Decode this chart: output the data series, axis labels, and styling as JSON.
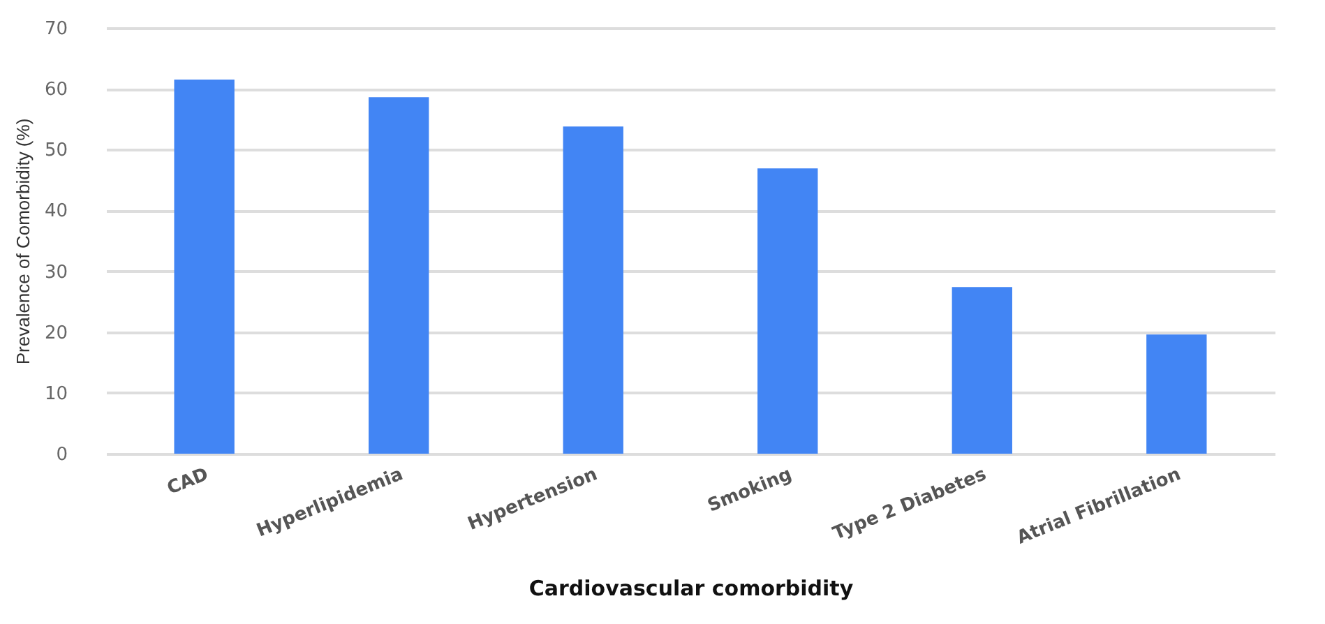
{
  "chart_data": {
    "type": "bar",
    "xlabel": "Cardiovascular comorbidity",
    "ylabel": "Prevalence of Comorbidity (%)",
    "categories": [
      "CAD",
      "Hyperlipidemia",
      "Hypertension",
      "Smoking",
      "Type 2 Diabetes",
      "Atrial Fibrillation"
    ],
    "values": [
      61.5,
      58.6,
      53.8,
      46.9,
      27.4,
      19.6
    ],
    "color": "#4285f4",
    "ylim": [
      0,
      70
    ],
    "yticks": [
      0,
      10,
      20,
      30,
      40,
      50,
      60,
      70
    ],
    "grid": "y"
  }
}
